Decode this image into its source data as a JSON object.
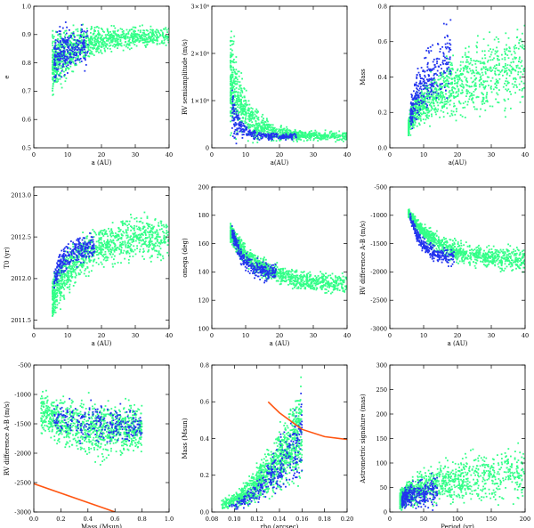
{
  "figure": {
    "description_label": "MCMC orbital parameter distributions (9 panels)"
  },
  "colors": {
    "all": "#33ff88",
    "selected": "#2233ee",
    "line": "#ff5511",
    "axis": "#000000"
  },
  "chart_data": [
    {
      "type": "scatter",
      "id": "p1",
      "xlabel": "a (AU)",
      "ylabel": "e",
      "xlim": [
        0,
        40
      ],
      "ylim": [
        0.5,
        1.0
      ],
      "xticks": [
        0,
        10,
        20,
        30,
        40
      ],
      "xticklabels": [
        "0",
        "10",
        "20",
        "30",
        "40"
      ],
      "yticks": [
        0.5,
        0.6,
        0.7,
        0.8,
        0.9,
        1.0
      ],
      "yticklabels": [
        "0.5",
        "0.6",
        "0.7",
        "0.8",
        "0.9",
        "1.0"
      ],
      "clouds": [
        {
          "series": "all",
          "n": 1100,
          "x": [
            5.5,
            40
          ],
          "skew": 1.6,
          "yfn": "sat",
          "ymin0": 0.63,
          "ymax0": 0.96,
          "ymin1": 0.85,
          "ymax1": 0.94
        },
        {
          "series": "selected",
          "n": 260,
          "x": [
            6,
            16
          ],
          "skew": 1.2,
          "yfn": "sat",
          "ymin0": 0.66,
          "ymax0": 0.96,
          "ymin1": 0.76,
          "ymax1": 0.96
        }
      ]
    },
    {
      "type": "scatter",
      "id": "p2",
      "xlabel": "a(AU)",
      "ylabel": "RV semiamplitude (m/s)",
      "xlim": [
        0,
        40
      ],
      "ylim": [
        0,
        30000
      ],
      "xticks": [
        0,
        10,
        20,
        30,
        40
      ],
      "xticklabels": [
        "0",
        "10",
        "20",
        "30",
        "40"
      ],
      "yticks": [
        0,
        10000,
        20000,
        30000
      ],
      "yticklabels": [
        "0",
        "1×10⁴",
        "2×10⁴",
        "3×10⁴"
      ],
      "clouds": [
        {
          "series": "all",
          "n": 1000,
          "x": [
            5.5,
            40
          ],
          "skew": 1.8,
          "yfn": "spike",
          "ymin0": 0,
          "ymax0": 26000,
          "ymin1": 1200,
          "ymax1": 3800
        },
        {
          "series": "selected",
          "n": 280,
          "x": [
            6,
            25
          ],
          "skew": 1.4,
          "yfn": "spike",
          "ymin0": 0,
          "ymax0": 12000,
          "ymin1": 1500,
          "ymax1": 3200
        }
      ]
    },
    {
      "type": "scatter",
      "id": "p3",
      "xlabel": "a(AU)",
      "ylabel": "Mass",
      "xlim": [
        0,
        40
      ],
      "ylim": [
        0,
        0.8
      ],
      "xticks": [
        0,
        10,
        20,
        30,
        40
      ],
      "xticklabels": [
        "0",
        "10",
        "20",
        "30",
        "40"
      ],
      "yticks": [
        0,
        0.2,
        0.4,
        0.6,
        0.8
      ],
      "yticklabels": [
        "0.0",
        "0.2",
        "0.4",
        "0.6",
        "0.8"
      ],
      "clouds": [
        {
          "series": "all",
          "n": 1100,
          "x": [
            5.5,
            40
          ],
          "skew": 1.6,
          "yfn": "fan",
          "ymin0": 0.05,
          "ymax0": 0.15,
          "ymin1": 0.15,
          "ymax1": 0.8
        },
        {
          "series": "selected",
          "n": 300,
          "x": [
            6,
            18
          ],
          "skew": 1.2,
          "yfn": "fan",
          "ymin0": 0.05,
          "ymax0": 0.2,
          "ymin1": 0.2,
          "ymax1": 0.8
        }
      ]
    },
    {
      "type": "scatter",
      "id": "p4",
      "xlabel": "a (AU)",
      "ylabel": "T0 (yr)",
      "xlim": [
        0,
        40
      ],
      "ylim": [
        2011.4,
        2013.1
      ],
      "xticks": [
        0,
        10,
        20,
        30,
        40
      ],
      "xticklabels": [
        "0",
        "10",
        "20",
        "30",
        "40"
      ],
      "yticks": [
        2011.5,
        2012.0,
        2012.5,
        2013.0
      ],
      "yticklabels": [
        "2011.5",
        "2012.0",
        "2012.5",
        "2013.0"
      ],
      "clouds": [
        {
          "series": "all",
          "n": 1100,
          "x": [
            5.5,
            40
          ],
          "skew": 1.6,
          "yfn": "sat",
          "ymin0": 2011.4,
          "ymax0": 2012.1,
          "ymin1": 2012.15,
          "ymax1": 2012.85
        },
        {
          "series": "selected",
          "n": 280,
          "x": [
            6,
            18
          ],
          "skew": 1.2,
          "yfn": "sat",
          "ymin0": 2011.8,
          "ymax0": 2012.1,
          "ymin1": 2012.15,
          "ymax1": 2012.6
        }
      ]
    },
    {
      "type": "scatter",
      "id": "p5",
      "xlabel": "a (AU)",
      "ylabel": "omega (deg)",
      "xlim": [
        0,
        40
      ],
      "ylim": [
        100,
        200
      ],
      "xticks": [
        0,
        10,
        20,
        30,
        40
      ],
      "xticklabels": [
        "0",
        "10",
        "20",
        "30",
        "40"
      ],
      "yticks": [
        100,
        120,
        140,
        160,
        180,
        200
      ],
      "yticklabels": [
        "100",
        "120",
        "140",
        "160",
        "180",
        "200"
      ],
      "clouds": [
        {
          "series": "all",
          "n": 1100,
          "x": [
            5.5,
            40
          ],
          "skew": 1.6,
          "yfn": "decay",
          "ymin0": 158,
          "ymax0": 177,
          "ymin1": 122,
          "ymax1": 140
        },
        {
          "series": "selected",
          "n": 280,
          "x": [
            6,
            19
          ],
          "skew": 1.2,
          "yfn": "decay",
          "ymin0": 160,
          "ymax0": 176,
          "ymin1": 130,
          "ymax1": 148
        }
      ]
    },
    {
      "type": "scatter",
      "id": "p6",
      "xlabel": "a (AU)",
      "ylabel": "RV difference A-B (m/s)",
      "xlim": [
        0,
        40
      ],
      "ylim": [
        -3000,
        -500
      ],
      "xticks": [
        0,
        10,
        20,
        30,
        40
      ],
      "xticklabels": [
        "0",
        "10",
        "20",
        "30",
        "40"
      ],
      "yticks": [
        -3000,
        -2500,
        -2000,
        -1500,
        -1000,
        -500
      ],
      "yticklabels": [
        "-3000",
        "-2500",
        "-2000",
        "-1500",
        "-1000",
        "-500"
      ],
      "clouds": [
        {
          "series": "all",
          "n": 1100,
          "x": [
            5.5,
            40
          ],
          "skew": 1.6,
          "yfn": "decay",
          "ymin0": -1050,
          "ymax0": -850,
          "ymin1": -2100,
          "ymax1": -1500
        },
        {
          "series": "selected",
          "n": 280,
          "x": [
            6,
            19
          ],
          "skew": 1.2,
          "yfn": "decay",
          "ymin0": -1100,
          "ymax0": -900,
          "ymin1": -1950,
          "ymax1": -1550
        }
      ]
    },
    {
      "type": "scatter",
      "id": "p7",
      "xlabel": "Mass (Msun)",
      "ylabel": "RV difference A-B (m/s)",
      "xlim": [
        0,
        1.0
      ],
      "ylim": [
        -3000,
        -500
      ],
      "xticks": [
        0,
        0.2,
        0.4,
        0.6,
        0.8,
        1.0
      ],
      "xticklabels": [
        "0.0",
        "0.2",
        "0.4",
        "0.6",
        "0.8",
        "1.0"
      ],
      "yticks": [
        -3000,
        -2500,
        -2000,
        -1500,
        -1000,
        -500
      ],
      "yticklabels": [
        "-3000",
        "-2500",
        "-2000",
        "-1500",
        "-1000",
        "-500"
      ],
      "clouds": [
        {
          "series": "all",
          "n": 1000,
          "x": [
            0.05,
            0.8
          ],
          "skew": 1.0,
          "yfn": "bowl",
          "ymin0": -1700,
          "ymax0": -850,
          "ymin1": -2250,
          "ymax1": -1050
        },
        {
          "series": "selected",
          "n": 260,
          "x": [
            0.15,
            0.8
          ],
          "skew": 1.0,
          "yfn": "bowl",
          "ymin0": -1700,
          "ymax0": -1000,
          "ymin1": -1950,
          "ymax1": -1150
        }
      ],
      "line": {
        "x": [
          0.0,
          0.6
        ],
        "y": [
          -2520,
          -3000
        ]
      }
    },
    {
      "type": "scatter",
      "id": "p8",
      "xlabel": "rho (arcsec)",
      "ylabel": "Mass (Msun)",
      "xlim": [
        0.08,
        0.2
      ],
      "ylim": [
        0,
        0.8
      ],
      "xticks": [
        0.08,
        0.1,
        0.12,
        0.14,
        0.16,
        0.18,
        0.2
      ],
      "xticklabels": [
        "0.08",
        "0.10",
        "0.12",
        "0.14",
        "0.16",
        "0.18",
        "0.20"
      ],
      "yticks": [
        0,
        0.2,
        0.4,
        0.6,
        0.8
      ],
      "yticklabels": [
        "0.0",
        "0.2",
        "0.4",
        "0.6",
        "0.8"
      ],
      "clouds": [
        {
          "series": "all",
          "n": 1100,
          "x": [
            0.088,
            0.16
          ],
          "skew": 0.7,
          "yfn": "rise",
          "ymin0": 0.0,
          "ymax0": 0.08,
          "ymin1": 0.1,
          "ymax1": 0.8
        },
        {
          "series": "selected",
          "n": 300,
          "x": [
            0.095,
            0.16
          ],
          "skew": 0.6,
          "yfn": "rise",
          "ymin0": 0.0,
          "ymax0": 0.06,
          "ymin1": 0.1,
          "ymax1": 0.75
        }
      ],
      "line": {
        "x": [
          0.13,
          0.14,
          0.16,
          0.18,
          0.2
        ],
        "y": [
          0.6,
          0.54,
          0.45,
          0.41,
          0.395
        ]
      }
    },
    {
      "type": "scatter",
      "id": "p9",
      "xlabel": "Period (yr)",
      "ylabel": "Astrometric signature (mas)",
      "xlim": [
        0,
        200
      ],
      "ylim": [
        0,
        300
      ],
      "xticks": [
        0,
        50,
        100,
        150,
        200
      ],
      "xticklabels": [
        "0",
        "50",
        "100",
        "150",
        "200"
      ],
      "yticks": [
        0,
        50,
        100,
        150,
        200,
        250,
        300
      ],
      "yticklabels": [
        "0",
        "50",
        "100",
        "150",
        "200",
        "250",
        "300"
      ],
      "clouds": [
        {
          "series": "all",
          "n": 1100,
          "x": [
            15,
            200
          ],
          "skew": 1.8,
          "yfn": "fan",
          "ymin0": 0,
          "ymax0": 40,
          "ymin1": 5,
          "ymax1": 160
        },
        {
          "series": "selected",
          "n": 280,
          "x": [
            18,
            70
          ],
          "skew": 1.6,
          "yfn": "fan",
          "ymin0": 0,
          "ymax0": 40,
          "ymin1": 0,
          "ymax1": 90
        }
      ]
    }
  ]
}
